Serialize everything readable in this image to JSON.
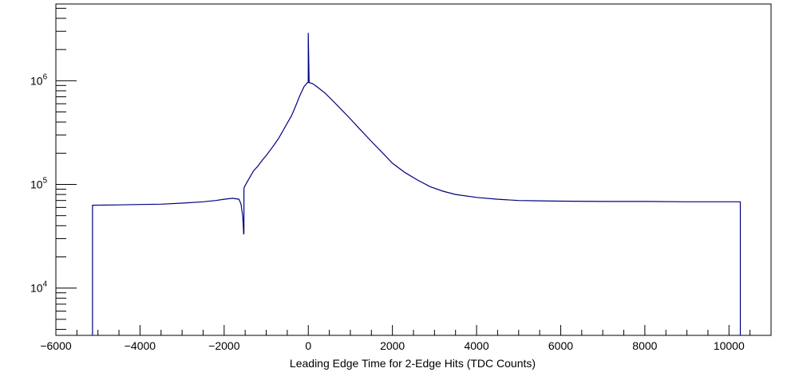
{
  "chart_data": {
    "type": "histogram",
    "title": "",
    "xlabel": "Leading Edge Time for 2-Edge Hits (TDC Counts)",
    "ylabel": "",
    "xlim": [
      -6000,
      11000
    ],
    "ylim": [
      3500,
      5500000
    ],
    "yscale": "log",
    "grid": false,
    "legend": "none",
    "line_color": "#000080",
    "x_ticks": [
      {
        "value": -6000,
        "label": "−6000"
      },
      {
        "value": -4000,
        "label": "−4000"
      },
      {
        "value": -2000,
        "label": "−2000"
      },
      {
        "value": 0,
        "label": "0"
      },
      {
        "value": 2000,
        "label": "2000"
      },
      {
        "value": 4000,
        "label": "4000"
      },
      {
        "value": 6000,
        "label": "6000"
      },
      {
        "value": 8000,
        "label": "8000"
      },
      {
        "value": 10000,
        "label": "10000"
      }
    ],
    "y_ticks": [
      {
        "value": 10000,
        "base": "10",
        "exp": "4"
      },
      {
        "value": 100000,
        "base": "10",
        "exp": "5"
      },
      {
        "value": 1000000,
        "base": "10",
        "exp": "6"
      }
    ],
    "series": [
      {
        "x": [
          -5130,
          -5130,
          -4500,
          -4000,
          -3500,
          -3000,
          -2500,
          -2200,
          -2000,
          -1800,
          -1650,
          -1600,
          -1560,
          -1545,
          -1535,
          -1530,
          -1530,
          -1500,
          -1400,
          -1300,
          -1200,
          -1100,
          -1000,
          -900,
          -800,
          -700,
          -600,
          -500,
          -400,
          -300,
          -200,
          -100,
          -20,
          0,
          0,
          20,
          100,
          200,
          400,
          600,
          800,
          1000,
          1200,
          1500,
          1800,
          2000,
          2300,
          2600,
          2900,
          3200,
          3500,
          4000,
          4500,
          5000,
          5500,
          6000,
          7000,
          8000,
          9000,
          10000,
          10270,
          10270
        ],
        "y": [
          3500,
          63000,
          63500,
          64000,
          64500,
          66000,
          68000,
          70000,
          72000,
          73500,
          72000,
          65000,
          50000,
          40000,
          33000,
          34000,
          92000,
          98000,
          115000,
          135000,
          150000,
          170000,
          190000,
          215000,
          245000,
          280000,
          330000,
          390000,
          460000,
          570000,
          720000,
          880000,
          960000,
          960000,
          2900000,
          960000,
          940000,
          880000,
          760000,
          630000,
          520000,
          430000,
          350000,
          260000,
          195000,
          160000,
          130000,
          110000,
          95000,
          86000,
          80000,
          75000,
          72000,
          70000,
          69500,
          69000,
          68500,
          68500,
          68000,
          68000,
          68000,
          3500
        ]
      }
    ]
  }
}
